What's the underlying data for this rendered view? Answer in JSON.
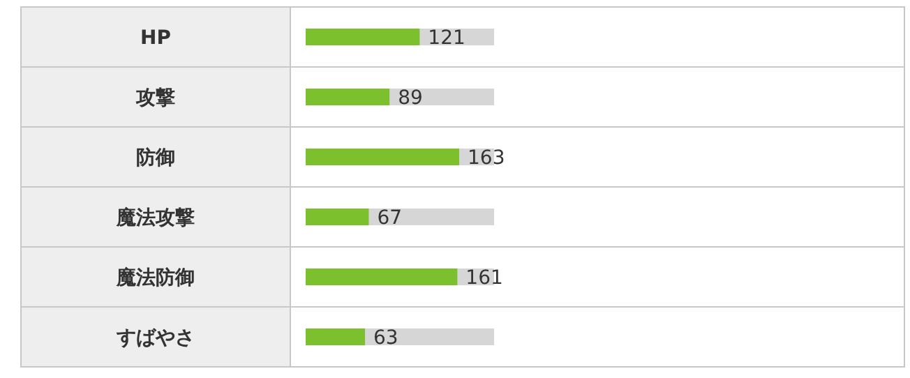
{
  "chart_data": {
    "type": "bar",
    "orientation": "horizontal",
    "categories": [
      "HP",
      "攻撃",
      "防御",
      "魔法攻撃",
      "魔法防御",
      "すばやさ"
    ],
    "values": [
      121,
      89,
      163,
      67,
      161,
      63
    ],
    "color": "#7dc02e",
    "xlim": [
      0,
      200
    ],
    "data_labels": true,
    "tick_labels": "y"
  }
}
